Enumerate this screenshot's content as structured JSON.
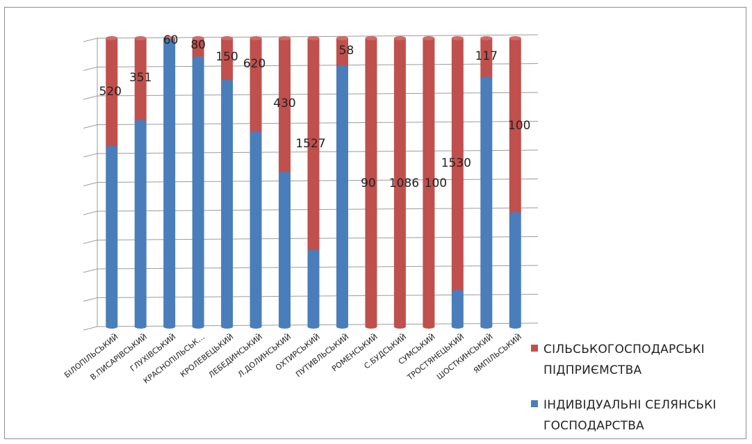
{
  "chart_data": {
    "type": "bar",
    "stacked": "percent",
    "categories": [
      "БІЛОПІЛЬСЬКИЙ",
      "В.ПИСАРІВСЬКИЙ",
      "ГЛУХІВСЬКИЙ",
      "КРАСНОПІЛЬСЬК…",
      "КРОЛЕВЕЦЬКИЙ",
      "ЛЕБЕДИНСЬКИЙ",
      "Л.ДОЛИНСЬКИЙ",
      "ОХТИРСЬКИЙ",
      "ПУТИВЛЬСЬКИЙ",
      "РОМЕНСЬКИЙ",
      "С.БУДСЬКИЙ",
      "СУМСЬКИЙ",
      "ТРОСТЯНЕЦЬКИЙ",
      "ШОСТКИНСЬКИЙ",
      "ЯМПІЛЬСЬКИЙ"
    ],
    "series": [
      {
        "name": "ІНДИВІДУАЛЬНІ СЕЛЯНСЬКІ ГОСПОДАРСТВА",
        "color": "#4a7ebb",
        "share": [
          0.62,
          0.71,
          0.99,
          0.93,
          0.85,
          0.67,
          0.53,
          0.26,
          0.9,
          0.0,
          0.0,
          0.0,
          0.12,
          0.86,
          0.39
        ]
      },
      {
        "name": "СІЛЬСЬКОГОСПОДАРСЬКІ ПІДПРИЄМСТВА",
        "color": "#c0504d",
        "values": [
          520,
          351,
          60,
          80,
          150,
          620,
          430,
          1527,
          58,
          90,
          1086,
          100,
          1530,
          117,
          100
        ]
      }
    ],
    "data_labels": [
      "520",
      "351",
      "60",
      "80",
      "150",
      "620",
      "430",
      "1527",
      "58",
      "90",
      "1086",
      "100",
      "1530",
      "117",
      "100"
    ],
    "ylim": [
      0,
      1
    ],
    "grid": true,
    "legend_position": "right"
  }
}
